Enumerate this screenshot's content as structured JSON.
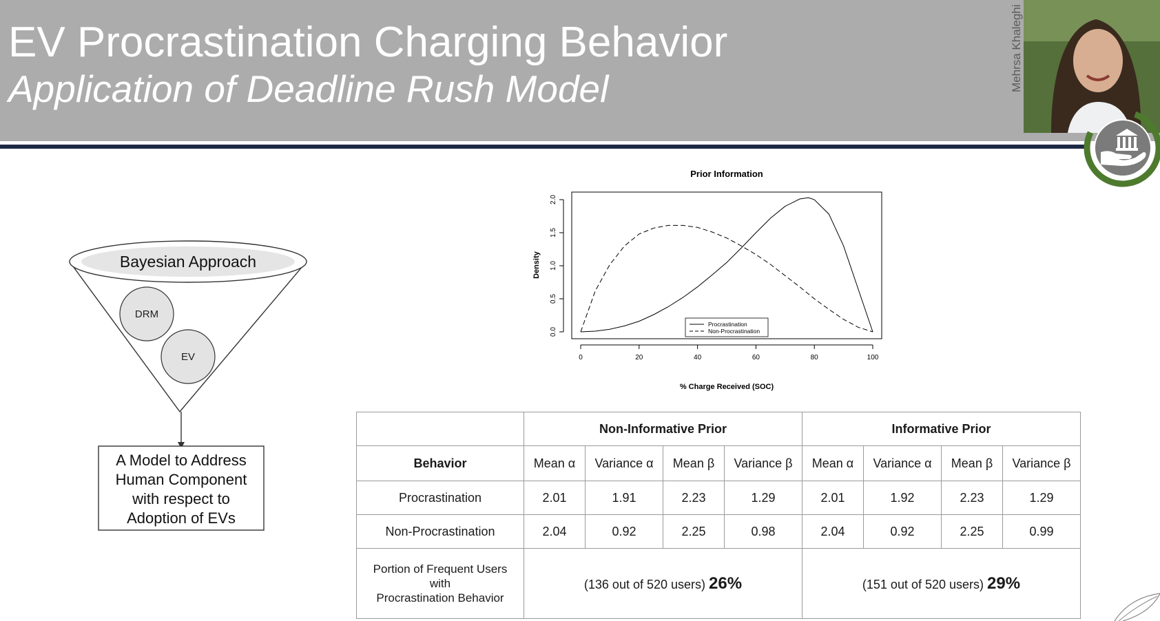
{
  "slide": {
    "title": "EV Procrastination Charging Behavior",
    "subtitle": "Application of Deadline Rush Model"
  },
  "presenter": {
    "name": "Mehrsa Khaleghi"
  },
  "logo": {
    "icon": "bank-hand-icon",
    "ring_color": "#4e7a2e",
    "disc_color": "#7b7b7b"
  },
  "funnel": {
    "top_label": "Bayesian Approach",
    "circles": [
      "DRM",
      "EV"
    ],
    "result_lines": [
      "A Model to Address",
      "Human Component",
      "with respect to",
      "Adoption of EVs"
    ]
  },
  "chart_data": {
    "type": "line",
    "title": "Prior Information",
    "xlabel": "% Charge Received (SOC)",
    "ylabel": "Density",
    "xlim": [
      0,
      100
    ],
    "ylim": [
      0,
      2.0
    ],
    "xticks": [
      0,
      20,
      40,
      60,
      80,
      100
    ],
    "yticks": [
      0.0,
      0.5,
      1.0,
      1.5,
      2.0
    ],
    "xtick_labels": [
      "0",
      "20",
      "40",
      "60",
      "80",
      "100"
    ],
    "ytick_labels": [
      "0.0",
      "0.5",
      "1.0",
      "1.5",
      "2.0"
    ],
    "grid": false,
    "legend_position": "bottom-center",
    "series": [
      {
        "name": "Procrastination",
        "style": "solid",
        "x": [
          0,
          5,
          10,
          15,
          20,
          25,
          30,
          35,
          40,
          45,
          50,
          55,
          60,
          65,
          70,
          75,
          78,
          80,
          85,
          90,
          95,
          100
        ],
        "y": [
          0,
          0.01,
          0.04,
          0.09,
          0.16,
          0.26,
          0.38,
          0.52,
          0.68,
          0.86,
          1.05,
          1.27,
          1.5,
          1.72,
          1.9,
          2.01,
          2.03,
          2.0,
          1.78,
          1.3,
          0.65,
          0
        ]
      },
      {
        "name": "Non-Procrastination",
        "style": "dashed",
        "x": [
          0,
          5,
          10,
          15,
          20,
          25,
          30,
          35,
          40,
          45,
          50,
          55,
          60,
          65,
          70,
          75,
          80,
          85,
          90,
          95,
          100
        ],
        "y": [
          0,
          0.62,
          1.02,
          1.3,
          1.48,
          1.57,
          1.61,
          1.61,
          1.58,
          1.51,
          1.42,
          1.3,
          1.17,
          1.02,
          0.85,
          0.68,
          0.5,
          0.34,
          0.19,
          0.07,
          0
        ]
      }
    ]
  },
  "table": {
    "group_headers": [
      "Non-Informative Prior",
      "Informative Prior"
    ],
    "behavior_header": "Behavior",
    "column_headers": [
      "Mean α",
      "Variance α",
      "Mean β",
      "Variance β",
      "Mean α",
      "Variance α",
      "Mean β",
      "Variance β"
    ],
    "rows": [
      {
        "label": "Procrastination",
        "values": [
          "2.01",
          "1.91",
          "2.23",
          "1.29",
          "2.01",
          "1.92",
          "2.23",
          "1.29"
        ]
      },
      {
        "label": "Non-Procrastination",
        "values": [
          "2.04",
          "0.92",
          "2.25",
          "0.98",
          "2.04",
          "0.92",
          "2.25",
          "0.99"
        ]
      }
    ],
    "portion": {
      "label_lines": [
        "Portion of Frequent Users",
        "with",
        "Procrastination Behavior"
      ],
      "non_informative": {
        "count": "(136 out of 520 users)",
        "pct": "26%"
      },
      "informative": {
        "count": "(151 out of 520 users)",
        "pct": "29%"
      }
    }
  }
}
